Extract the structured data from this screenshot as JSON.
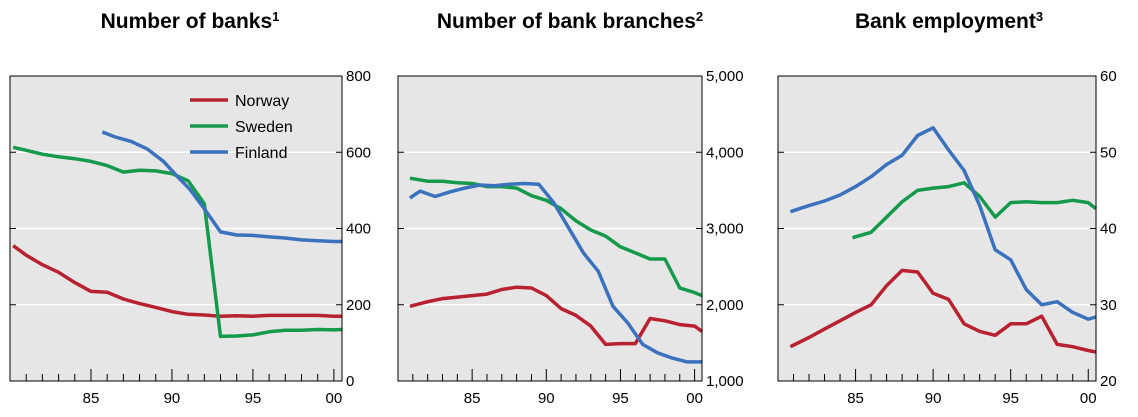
{
  "colors": {
    "norway": "#b8212f",
    "sweden": "#159a4b",
    "finland": "#3a72bd",
    "plot_bg": "#e6e6e6",
    "grid": "#ffffff",
    "axis": "#000000"
  },
  "chart_data": [
    {
      "type": "line",
      "title": "Number of banks",
      "title_superscript": "1",
      "xlim": [
        1980,
        2000.5
      ],
      "ylim": [
        0,
        800
      ],
      "x_tick_labels": [
        {
          "x": 1985,
          "label": "85"
        },
        {
          "x": 1990,
          "label": "90"
        },
        {
          "x": 1995,
          "label": "95"
        },
        {
          "x": 2000,
          "label": "00"
        }
      ],
      "y_tick_labels": [
        {
          "y": 0,
          "label": "0"
        },
        {
          "y": 200,
          "label": "200"
        },
        {
          "y": 400,
          "label": "400"
        },
        {
          "y": 600,
          "label": "600"
        },
        {
          "y": 800,
          "label": "800"
        }
      ],
      "legend": {
        "placement": "top-right"
      },
      "series": [
        {
          "name": "Norway",
          "color_key": "norway",
          "points": [
            [
              1980.2,
              355
            ],
            [
              1981,
              330
            ],
            [
              1982,
              305
            ],
            [
              1983,
              285
            ],
            [
              1984,
              258
            ],
            [
              1985,
              235
            ],
            [
              1986,
              233
            ],
            [
              1987,
              215
            ],
            [
              1988,
              203
            ],
            [
              1989,
              193
            ],
            [
              1990,
              182
            ],
            [
              1991,
              175
            ],
            [
              1992,
              173
            ],
            [
              1993,
              170
            ],
            [
              1994,
              171
            ],
            [
              1995,
              170
            ],
            [
              1996,
              172
            ],
            [
              1997,
              172
            ],
            [
              1998,
              172
            ],
            [
              1999,
              172
            ],
            [
              2000,
              170
            ],
            [
              2000.5,
              170
            ]
          ]
        },
        {
          "name": "Sweden",
          "color_key": "sweden",
          "points": [
            [
              1980.2,
              613
            ],
            [
              1981,
              605
            ],
            [
              1982,
              595
            ],
            [
              1983,
              588
            ],
            [
              1984,
              583
            ],
            [
              1985,
              576
            ],
            [
              1986,
              565
            ],
            [
              1987,
              548
            ],
            [
              1988,
              553
            ],
            [
              1989,
              551
            ],
            [
              1990,
              544
            ],
            [
              1991,
              525
            ],
            [
              1992,
              465
            ],
            [
              1993,
              117
            ],
            [
              1994,
              118
            ],
            [
              1995,
              121
            ],
            [
              1996,
              129
            ],
            [
              1997,
              133
            ],
            [
              1998,
              133
            ],
            [
              1999,
              135
            ],
            [
              2000,
              134
            ],
            [
              2000.5,
              135
            ]
          ]
        },
        {
          "name": "Finland",
          "color_key": "finland",
          "points": [
            [
              1985.7,
              653
            ],
            [
              1986.5,
              640
            ],
            [
              1987.5,
              628
            ],
            [
              1988.5,
              608
            ],
            [
              1989.5,
              575
            ],
            [
              1990.3,
              538
            ],
            [
              1991.1,
              503
            ],
            [
              1992,
              452
            ],
            [
              1993,
              391
            ],
            [
              1994,
              383
            ],
            [
              1995,
              382
            ],
            [
              1996,
              378
            ],
            [
              1997,
              375
            ],
            [
              1998,
              370
            ],
            [
              1999,
              368
            ],
            [
              2000,
              366
            ],
            [
              2000.5,
              366
            ]
          ]
        }
      ]
    },
    {
      "type": "line",
      "title": "Number of bank branches",
      "title_superscript": "2",
      "xlim": [
        1980,
        2000.5
      ],
      "ylim": [
        1000,
        5000
      ],
      "x_tick_labels": [
        {
          "x": 1985,
          "label": "85"
        },
        {
          "x": 1990,
          "label": "90"
        },
        {
          "x": 1995,
          "label": "95"
        },
        {
          "x": 2000,
          "label": "00"
        }
      ],
      "y_tick_labels": [
        {
          "y": 1000,
          "label": "1,000"
        },
        {
          "y": 2000,
          "label": "2,000"
        },
        {
          "y": 3000,
          "label": "3,000"
        },
        {
          "y": 4000,
          "label": "4,000"
        },
        {
          "y": 5000,
          "label": "5,000"
        }
      ],
      "series": [
        {
          "name": "Norway",
          "color_key": "norway",
          "points": [
            [
              1980.8,
              1980
            ],
            [
              1982,
              2040
            ],
            [
              1983,
              2080
            ],
            [
              1984,
              2100
            ],
            [
              1985,
              2120
            ],
            [
              1986,
              2140
            ],
            [
              1987,
              2200
            ],
            [
              1988,
              2230
            ],
            [
              1989,
              2220
            ],
            [
              1990,
              2120
            ],
            [
              1991,
              1950
            ],
            [
              1992,
              1860
            ],
            [
              1993,
              1720
            ],
            [
              1994,
              1480
            ],
            [
              1995,
              1490
            ],
            [
              1996,
              1490
            ],
            [
              1997,
              1820
            ],
            [
              1998,
              1790
            ],
            [
              1999,
              1740
            ],
            [
              2000,
              1720
            ],
            [
              2000.5,
              1650
            ]
          ]
        },
        {
          "name": "Sweden",
          "color_key": "sweden",
          "points": [
            [
              1980.8,
              3660
            ],
            [
              1982,
              3620
            ],
            [
              1983,
              3620
            ],
            [
              1984,
              3600
            ],
            [
              1985,
              3590
            ],
            [
              1986,
              3550
            ],
            [
              1987,
              3550
            ],
            [
              1988,
              3530
            ],
            [
              1989,
              3430
            ],
            [
              1990,
              3370
            ],
            [
              1991,
              3260
            ],
            [
              1992,
              3100
            ],
            [
              1993,
              2980
            ],
            [
              1994,
              2900
            ],
            [
              1995,
              2760
            ],
            [
              1996,
              2680
            ],
            [
              1997,
              2600
            ],
            [
              1998,
              2600
            ],
            [
              1999,
              2220
            ],
            [
              2000,
              2160
            ],
            [
              2000.5,
              2120
            ]
          ]
        },
        {
          "name": "Finland",
          "color_key": "finland",
          "points": [
            [
              1980.8,
              3400
            ],
            [
              1981.5,
              3490
            ],
            [
              1982.5,
              3420
            ],
            [
              1983.5,
              3480
            ],
            [
              1984.5,
              3530
            ],
            [
              1985.5,
              3570
            ],
            [
              1986.5,
              3560
            ],
            [
              1987.5,
              3580
            ],
            [
              1988.5,
              3590
            ],
            [
              1989.5,
              3580
            ],
            [
              1990.5,
              3340
            ],
            [
              1991.5,
              3010
            ],
            [
              1992.5,
              2680
            ],
            [
              1993.5,
              2440
            ],
            [
              1994.5,
              1980
            ],
            [
              1995.5,
              1760
            ],
            [
              1996.5,
              1480
            ],
            [
              1997.5,
              1370
            ],
            [
              1998.5,
              1300
            ],
            [
              1999.5,
              1250
            ],
            [
              2000.5,
              1250
            ]
          ]
        }
      ]
    },
    {
      "type": "line",
      "title": "Bank employment",
      "title_superscript": "3",
      "xlim": [
        1980,
        2000.5
      ],
      "ylim": [
        20,
        60
      ],
      "x_tick_labels": [
        {
          "x": 1985,
          "label": "85"
        },
        {
          "x": 1990,
          "label": "90"
        },
        {
          "x": 1995,
          "label": "95"
        },
        {
          "x": 2000,
          "label": "00"
        }
      ],
      "y_tick_labels": [
        {
          "y": 20,
          "label": "20"
        },
        {
          "y": 30,
          "label": "30"
        },
        {
          "y": 40,
          "label": "40"
        },
        {
          "y": 50,
          "label": "50"
        },
        {
          "y": 60,
          "label": "60"
        }
      ],
      "series": [
        {
          "name": "Norway",
          "color_key": "norway",
          "points": [
            [
              1980.8,
              24.5
            ],
            [
              1982,
              25.7
            ],
            [
              1983,
              26.8
            ],
            [
              1984,
              27.9
            ],
            [
              1985,
              29
            ],
            [
              1986,
              30
            ],
            [
              1987,
              32.5
            ],
            [
              1988,
              34.5
            ],
            [
              1989,
              34.3
            ],
            [
              1990,
              31.5
            ],
            [
              1991,
              30.7
            ],
            [
              1992,
              27.5
            ],
            [
              1993,
              26.5
            ],
            [
              1994,
              26
            ],
            [
              1995,
              27.5
            ],
            [
              1996,
              27.5
            ],
            [
              1997,
              28.5
            ],
            [
              1998,
              24.8
            ],
            [
              1999,
              24.5
            ],
            [
              2000,
              24
            ],
            [
              2000.5,
              23.8
            ]
          ]
        },
        {
          "name": "Sweden",
          "color_key": "sweden",
          "points": [
            [
              1984.8,
              38.8
            ],
            [
              1986,
              39.5
            ],
            [
              1987,
              41.5
            ],
            [
              1988,
              43.5
            ],
            [
              1989,
              45
            ],
            [
              1990,
              45.3
            ],
            [
              1991,
              45.5
            ],
            [
              1992,
              46
            ],
            [
              1993,
              44.2
            ],
            [
              1994,
              41.5
            ],
            [
              1995,
              43.4
            ],
            [
              1996,
              43.5
            ],
            [
              1997,
              43.4
            ],
            [
              1998,
              43.4
            ],
            [
              1999,
              43.7
            ],
            [
              2000,
              43.4
            ],
            [
              2000.5,
              42.6
            ]
          ]
        },
        {
          "name": "Finland",
          "color_key": "finland",
          "points": [
            [
              1980.8,
              42.2
            ],
            [
              1982,
              43
            ],
            [
              1983,
              43.6
            ],
            [
              1984,
              44.4
            ],
            [
              1985,
              45.5
            ],
            [
              1986,
              46.8
            ],
            [
              1987,
              48.4
            ],
            [
              1988,
              49.6
            ],
            [
              1989,
              52.2
            ],
            [
              1990,
              53.2
            ],
            [
              1991,
              50.3
            ],
            [
              1992,
              47.6
            ],
            [
              1993,
              43
            ],
            [
              1994,
              37.2
            ],
            [
              1995,
              35.9
            ],
            [
              1996,
              32
            ],
            [
              1997,
              30
            ],
            [
              1998,
              30.4
            ],
            [
              1999,
              29
            ],
            [
              2000,
              28.1
            ],
            [
              2000.5,
              28.4
            ]
          ]
        }
      ]
    }
  ]
}
